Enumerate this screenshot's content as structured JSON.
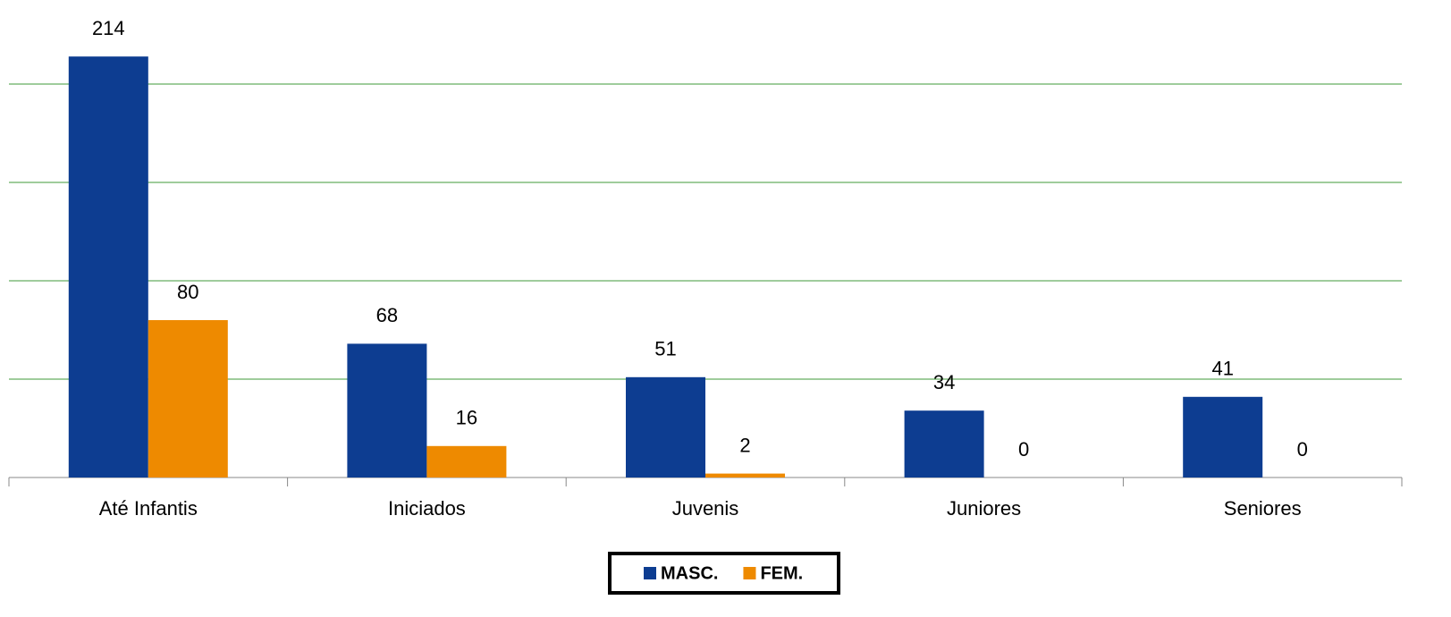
{
  "chart_data": {
    "type": "bar",
    "categories": [
      "Até Infantis",
      "Iniciados",
      "Juvenis",
      "Juniores",
      "Seniores"
    ],
    "series": [
      {
        "name": "MASC.",
        "color": "#0d3d91",
        "values": [
          214,
          68,
          51,
          34,
          41
        ]
      },
      {
        "name": "FEM.",
        "color": "#ee8a00",
        "values": [
          80,
          16,
          2,
          0,
          0
        ]
      }
    ],
    "ylim": [
      0,
      240
    ],
    "yticks": [
      0,
      50,
      100,
      150,
      200
    ],
    "grid": true,
    "legend": "bottom"
  }
}
